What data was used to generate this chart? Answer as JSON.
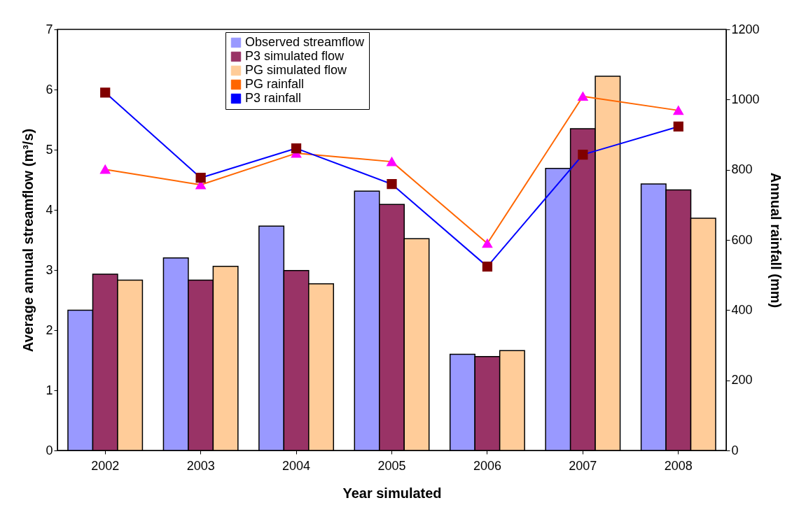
{
  "chart_data": {
    "type": "bar",
    "xlabel": "Year simulated",
    "ylabel": "Average annual streamflow (m³/s)",
    "y2label": "Annual rainfall (mm)",
    "categories": [
      "2002",
      "2003",
      "2004",
      "2005",
      "2006",
      "2007",
      "2008"
    ],
    "series": [
      {
        "name": "Observed streamflow",
        "color": "#9999ff",
        "values": [
          2.33,
          3.2,
          3.73,
          4.31,
          1.6,
          4.69,
          4.43
        ]
      },
      {
        "name": "P3 simulated flow",
        "color": "#993366",
        "values": [
          2.93,
          2.83,
          2.99,
          4.09,
          1.56,
          5.35,
          4.33
        ]
      },
      {
        "name": "PG simulated flow",
        "color": "#ffcc99",
        "values": [
          2.83,
          3.06,
          2.77,
          3.52,
          1.66,
          6.22,
          3.86
        ]
      },
      {
        "name": "PG rainfall",
        "type": "line",
        "axis": "y2",
        "color": "#ff6600",
        "marker": "triangle",
        "colors": [
          "#ff00ff",
          "#ff00ff",
          "#ff00ff",
          "#ff00ff",
          "#ff00ff",
          "#ff00ff",
          "#ff00ff"
        ],
        "values": [
          801,
          757,
          847,
          823,
          590,
          1009,
          969
        ]
      },
      {
        "name": "P3 rainfall",
        "type": "line",
        "axis": "y2",
        "color": "#0000ff",
        "marker": "square",
        "colors": [
          "#800000",
          "#800000",
          "#800000",
          "#800000",
          "#800000",
          "#800000",
          "#800000"
        ],
        "values": [
          1020,
          777,
          861,
          759,
          524,
          843,
          923
        ]
      }
    ],
    "ylim": [
      0,
      7
    ],
    "yticks": [
      0,
      1,
      2,
      3,
      4,
      5,
      6,
      7
    ],
    "y2lim": [
      0,
      1200
    ],
    "y2ticks": [
      0,
      200,
      400,
      600,
      800,
      1000,
      1200
    ],
    "grid": false,
    "legend": "top"
  }
}
